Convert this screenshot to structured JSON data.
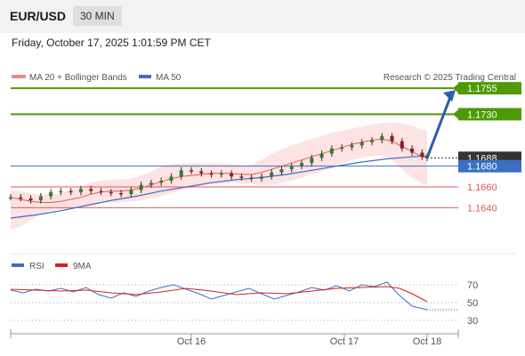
{
  "header": {
    "symbol": "EUR/USD",
    "timeframe": "30 MIN"
  },
  "datetime": "Friday, October 17, 2025 1:01:59 PM CET",
  "legend": {
    "bb_label": "MA 20 + Bollinger Bands",
    "ma50_label": "MA 50",
    "credit": "Research © 2025 Trading Central"
  },
  "colors": {
    "green": "#4e9a06",
    "red": "#e05a5a",
    "blue": "#3a6fc4",
    "arrow": "#2b5fa8",
    "band_fill": "#fde3e3"
  },
  "chart_data": [
    {
      "type": "line",
      "panel": "price",
      "series": [
        {
          "name": "MA 20 + Bollinger Bands",
          "x": [
            0,
            4,
            8,
            12,
            16,
            20,
            24,
            28,
            32,
            36,
            40,
            44,
            48,
            52,
            56,
            60,
            64,
            68,
            72,
            76,
            80,
            84,
            88,
            92,
            96,
            100,
            104,
            108,
            112,
            116,
            120,
            124,
            128,
            132,
            136,
            140,
            144,
            148,
            152,
            156,
            160,
            164,
            166
          ],
          "values": [
            1.165,
            1.1648,
            1.1646,
            1.1645,
            1.1645,
            1.1646,
            1.1648,
            1.165,
            1.1653,
            1.1655,
            1.1656,
            1.1656,
            1.1657,
            1.1659,
            1.1662,
            1.1665,
            1.1668,
            1.167,
            1.1671,
            1.1672,
            1.1673,
            1.1673,
            1.1673,
            1.1672,
            1.1672,
            1.1674,
            1.1677,
            1.168,
            1.1683,
            1.1686,
            1.1689,
            1.1692,
            1.1695,
            1.1698,
            1.1701,
            1.1703,
            1.1705,
            1.1706,
            1.1704,
            1.1699,
            1.1694,
            1.1689,
            1.1688
          ]
        },
        {
          "name": "MA 50",
          "x": [
            0,
            10,
            20,
            30,
            40,
            50,
            60,
            70,
            80,
            90,
            100,
            110,
            120,
            130,
            140,
            150,
            160,
            166
          ],
          "values": [
            1.163,
            1.1633,
            1.1637,
            1.1642,
            1.1647,
            1.1651,
            1.1656,
            1.166,
            1.1664,
            1.1667,
            1.1669,
            1.1672,
            1.1676,
            1.168,
            1.1684,
            1.1687,
            1.1689,
            1.169
          ]
        }
      ],
      "bollinger_upper": [
        1.1657,
        1.1656,
        1.1654,
        1.1653,
        1.1653,
        1.1654,
        1.1657,
        1.166,
        1.1664,
        1.1666,
        1.1667,
        1.1667,
        1.1668,
        1.1671,
        1.1675,
        1.1679,
        1.1682,
        1.1683,
        1.1683,
        1.1683,
        1.1683,
        1.1683,
        1.1682,
        1.1681,
        1.1681,
        1.1686,
        1.1692,
        1.1696,
        1.17,
        1.1703,
        1.1706,
        1.1709,
        1.1712,
        1.1714,
        1.1716,
        1.1718,
        1.172,
        1.1722,
        1.1722,
        1.1721,
        1.1719,
        1.1715,
        1.1714
      ],
      "bollinger_lower": [
        1.1619,
        1.1622,
        1.1628,
        1.1634,
        1.1637,
        1.1638,
        1.1639,
        1.164,
        1.1642,
        1.1644,
        1.1645,
        1.1645,
        1.1646,
        1.1647,
        1.1649,
        1.1651,
        1.1654,
        1.1657,
        1.1659,
        1.1661,
        1.1663,
        1.1663,
        1.1664,
        1.1663,
        1.1663,
        1.1662,
        1.1662,
        1.1664,
        1.1666,
        1.1669,
        1.1672,
        1.1675,
        1.1678,
        1.1682,
        1.1686,
        1.1688,
        1.169,
        1.169,
        1.1686,
        1.1677,
        1.1669,
        1.1663,
        1.1662
      ],
      "candles": [
        {
          "x": 0,
          "c": 1.165
        },
        {
          "x": 4,
          "c": 1.1649
        },
        {
          "x": 8,
          "c": 1.1647
        },
        {
          "x": 12,
          "c": 1.1651
        },
        {
          "x": 16,
          "c": 1.1655
        },
        {
          "x": 20,
          "c": 1.1656
        },
        {
          "x": 24,
          "c": 1.1655
        },
        {
          "x": 28,
          "c": 1.1658
        },
        {
          "x": 32,
          "c": 1.1656
        },
        {
          "x": 36,
          "c": 1.1655
        },
        {
          "x": 40,
          "c": 1.1654
        },
        {
          "x": 44,
          "c": 1.1653
        },
        {
          "x": 48,
          "c": 1.1657
        },
        {
          "x": 52,
          "c": 1.1662
        },
        {
          "x": 56,
          "c": 1.1664
        },
        {
          "x": 60,
          "c": 1.1666
        },
        {
          "x": 64,
          "c": 1.167
        },
        {
          "x": 68,
          "c": 1.1676
        },
        {
          "x": 72,
          "c": 1.1675
        },
        {
          "x": 76,
          "c": 1.1673
        },
        {
          "x": 80,
          "c": 1.1672
        },
        {
          "x": 84,
          "c": 1.1673
        },
        {
          "x": 88,
          "c": 1.167
        },
        {
          "x": 92,
          "c": 1.1669
        },
        {
          "x": 96,
          "c": 1.1668
        },
        {
          "x": 100,
          "c": 1.167
        },
        {
          "x": 104,
          "c": 1.1674
        },
        {
          "x": 108,
          "c": 1.1677
        },
        {
          "x": 112,
          "c": 1.168
        },
        {
          "x": 116,
          "c": 1.1683
        },
        {
          "x": 120,
          "c": 1.1688
        },
        {
          "x": 124,
          "c": 1.1692
        },
        {
          "x": 128,
          "c": 1.1697
        },
        {
          "x": 132,
          "c": 1.1698
        },
        {
          "x": 136,
          "c": 1.17
        },
        {
          "x": 140,
          "c": 1.1703
        },
        {
          "x": 144,
          "c": 1.1705
        },
        {
          "x": 148,
          "c": 1.1709
        },
        {
          "x": 152,
          "c": 1.1704
        },
        {
          "x": 156,
          "c": 1.1697
        },
        {
          "x": 160,
          "c": 1.1693
        },
        {
          "x": 164,
          "c": 1.1689
        },
        {
          "x": 166,
          "c": 1.1688
        }
      ],
      "levels": [
        {
          "value": 1.1755,
          "label": "1.1755",
          "color": "#4e9a06",
          "style": "box"
        },
        {
          "value": 1.173,
          "label": "1.1730",
          "color": "#4e9a06",
          "style": "box"
        },
        {
          "value": 1.1688,
          "label": "1.1688",
          "color": "#333333",
          "style": "box"
        },
        {
          "value": 1.168,
          "label": "1.1680",
          "color": "#3a6fc4",
          "style": "box"
        },
        {
          "value": 1.166,
          "label": "1.1660",
          "color": "#e05a5a",
          "style": "text"
        },
        {
          "value": 1.164,
          "label": "1.1640",
          "color": "#e05a5a",
          "style": "text"
        }
      ],
      "ylim": [
        1.16,
        1.178
      ]
    },
    {
      "type": "line",
      "panel": "rsi",
      "series": [
        {
          "name": "RSI",
          "x": [
            0,
            5,
            10,
            15,
            20,
            25,
            30,
            35,
            40,
            45,
            50,
            55,
            60,
            65,
            70,
            75,
            80,
            85,
            90,
            95,
            100,
            105,
            110,
            115,
            120,
            125,
            130,
            135,
            140,
            145,
            150,
            155,
            160,
            166
          ],
          "values": [
            64,
            61,
            65,
            63,
            66,
            62,
            67,
            59,
            55,
            61,
            57,
            63,
            67,
            70,
            65,
            60,
            54,
            58,
            62,
            66,
            60,
            54,
            58,
            62,
            67,
            64,
            69,
            63,
            70,
            68,
            73,
            58,
            46,
            42
          ]
        },
        {
          "name": "9MA",
          "x": [
            0,
            10,
            20,
            30,
            40,
            50,
            60,
            70,
            80,
            90,
            100,
            110,
            120,
            130,
            140,
            150,
            155,
            160,
            166
          ],
          "values": [
            65,
            64,
            63,
            64,
            61,
            59,
            62,
            66,
            63,
            59,
            61,
            60,
            63,
            66,
            67,
            68,
            66,
            60,
            51
          ]
        }
      ],
      "ticks": [
        70,
        50,
        30
      ],
      "ylim": [
        20,
        80
      ]
    }
  ],
  "x_axis": {
    "ticks": [
      "Oct 16",
      "Oct 17",
      "Oct 18"
    ]
  },
  "rsi_legend": {
    "rsi_label": "RSI",
    "ma_label": "9MA"
  }
}
